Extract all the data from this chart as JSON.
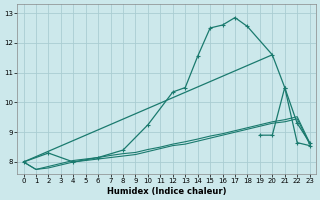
{
  "xlabel": "Humidex (Indice chaleur)",
  "background_color": "#cce8eb",
  "grid_color": "#aacdd2",
  "line_color": "#1a7a6e",
  "xlim": [
    -0.5,
    23.5
  ],
  "ylim": [
    7.6,
    13.3
  ],
  "x_ticks": [
    0,
    1,
    2,
    3,
    4,
    5,
    6,
    7,
    8,
    9,
    10,
    11,
    12,
    13,
    14,
    15,
    16,
    17,
    18,
    19,
    20,
    21,
    22,
    23
  ],
  "y_ticks": [
    8,
    9,
    10,
    11,
    12,
    13
  ],
  "curve_main": {
    "x": [
      0,
      2,
      4,
      6,
      8,
      10,
      12,
      13,
      14,
      15,
      16,
      17,
      18,
      20,
      21,
      22,
      23
    ],
    "y": [
      8.0,
      8.3,
      8.0,
      8.15,
      8.4,
      9.25,
      10.35,
      10.5,
      11.55,
      12.5,
      12.6,
      12.85,
      12.55,
      11.6,
      10.5,
      9.3,
      8.65
    ]
  },
  "curve_diagonal": {
    "x": [
      0,
      20
    ],
    "y": [
      8.0,
      11.6
    ]
  },
  "curve_flat1": {
    "x": [
      0,
      1,
      2,
      3,
      4,
      5,
      6,
      7,
      8,
      9,
      10,
      11,
      12,
      13,
      14,
      15,
      16,
      17,
      18,
      19,
      20,
      21,
      22,
      23
    ],
    "y": [
      8.0,
      7.75,
      7.8,
      7.9,
      8.0,
      8.05,
      8.1,
      8.15,
      8.2,
      8.25,
      8.35,
      8.45,
      8.55,
      8.6,
      8.7,
      8.8,
      8.9,
      9.0,
      9.1,
      9.2,
      9.3,
      9.35,
      9.45,
      8.6
    ]
  },
  "curve_flat2": {
    "x": [
      0,
      1,
      2,
      3,
      4,
      5,
      6,
      7,
      8,
      9,
      10,
      11,
      12,
      13,
      14,
      15,
      16,
      17,
      18,
      19,
      20,
      21,
      22,
      23
    ],
    "y": [
      8.0,
      7.75,
      7.85,
      7.95,
      8.05,
      8.1,
      8.15,
      8.22,
      8.28,
      8.32,
      8.42,
      8.5,
      8.6,
      8.68,
      8.77,
      8.87,
      8.95,
      9.05,
      9.15,
      9.25,
      9.35,
      9.42,
      9.52,
      8.65
    ]
  },
  "curve_spike": {
    "x": [
      19,
      20,
      21,
      22,
      23
    ],
    "y": [
      8.9,
      8.9,
      10.5,
      8.65,
      8.55
    ]
  }
}
